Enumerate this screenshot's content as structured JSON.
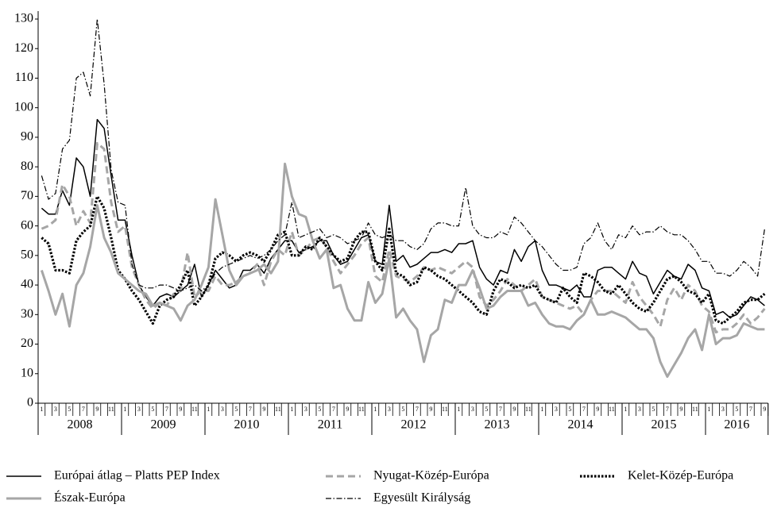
{
  "chart_data": {
    "type": "line",
    "categories": [
      "1",
      null,
      "3",
      null,
      "5",
      null,
      "7",
      null,
      "9",
      null,
      "11",
      null,
      "1",
      null,
      "3",
      null,
      "5",
      null,
      "7",
      null,
      "9",
      null,
      "11",
      null,
      "1",
      null,
      "3",
      null,
      "5",
      null,
      "7",
      null,
      "9",
      null,
      "11",
      null,
      "1",
      null,
      "3",
      null,
      "5",
      null,
      "7",
      null,
      "9",
      null,
      "11",
      null,
      "1",
      null,
      "3",
      null,
      "5",
      null,
      "7",
      null,
      "9",
      null,
      "11",
      null,
      "1",
      null,
      "3",
      null,
      "5",
      null,
      "7",
      null,
      "9",
      null,
      "11",
      null,
      "1",
      null,
      "3",
      null,
      "5",
      null,
      "7",
      null,
      "9",
      null,
      "11",
      null,
      "1",
      null,
      "3",
      null,
      "5",
      null,
      "7",
      null,
      "9",
      null,
      "11",
      null,
      "1",
      null,
      "3",
      null,
      "5",
      null,
      "7",
      null,
      "9"
    ],
    "years": [
      "2008",
      "2009",
      "2010",
      "2011",
      "2012",
      "2013",
      "2014",
      "2015",
      "2016"
    ],
    "ylim": [
      0,
      130
    ],
    "yticks": [
      0,
      10,
      20,
      30,
      40,
      50,
      60,
      70,
      80,
      90,
      100,
      110,
      120,
      130
    ],
    "series": [
      {
        "name": "Európai átlag – Platts PEP Index",
        "color": "#000000",
        "style": "solid",
        "values": [
          66,
          64,
          64,
          72,
          67,
          83,
          80,
          70,
          96,
          93,
          77,
          62,
          62,
          50,
          40,
          36,
          33,
          36,
          37,
          36,
          38,
          40,
          47,
          36,
          40,
          45,
          42,
          39,
          40,
          45,
          45,
          47,
          44,
          49,
          52,
          55,
          55,
          51,
          52,
          53,
          55,
          55,
          50,
          47,
          48,
          52,
          56,
          57,
          48,
          47,
          67,
          48,
          50,
          46,
          47,
          49,
          51,
          51,
          52,
          51,
          54,
          54,
          55,
          46,
          42,
          40,
          45,
          44,
          52,
          48,
          53,
          55,
          45,
          40,
          40,
          39,
          38,
          40,
          36,
          36,
          45,
          46,
          46,
          44,
          42,
          48,
          44,
          43,
          37,
          41,
          45,
          43,
          42,
          47,
          45,
          39,
          38,
          30,
          31,
          29,
          30,
          33,
          36,
          35,
          33
        ]
      },
      {
        "name": "Nyugat-Közép-Európa",
        "color": "#a6a6a6",
        "style": "dashed",
        "values": [
          59,
          60,
          62,
          74,
          70,
          60,
          65,
          61,
          88,
          86,
          68,
          58,
          60,
          46,
          40,
          35,
          32,
          34,
          33,
          37,
          38,
          51,
          36,
          38,
          38,
          43,
          40,
          40,
          41,
          43,
          44,
          47,
          40,
          48,
          52,
          50,
          58,
          50,
          52,
          55,
          56,
          53,
          48,
          44,
          47,
          50,
          54,
          56,
          43,
          41,
          52,
          43,
          42,
          41,
          43,
          46,
          45,
          46,
          45,
          44,
          46,
          48,
          46,
          36,
          33,
          35,
          38,
          42,
          40,
          38,
          40,
          42,
          36,
          35,
          34,
          33,
          32,
          33,
          30,
          35,
          38,
          38,
          38,
          36,
          34,
          41,
          36,
          33,
          30,
          26,
          35,
          39,
          35,
          40,
          38,
          33,
          31,
          24,
          25,
          25,
          27,
          30,
          27,
          29,
          32
        ]
      },
      {
        "name": "Kelet-Közép-Európa",
        "color": "#000000",
        "style": "dotted",
        "values": [
          56,
          54,
          45,
          45,
          44,
          55,
          58,
          60,
          70,
          66,
          56,
          45,
          42,
          38,
          35,
          31,
          27,
          33,
          35,
          36,
          40,
          45,
          33,
          36,
          40,
          49,
          51,
          50,
          48,
          50,
          51,
          50,
          48,
          52,
          57,
          58,
          50,
          50,
          53,
          52,
          56,
          53,
          50,
          48,
          49,
          55,
          58,
          58,
          48,
          45,
          59,
          44,
          43,
          40,
          41,
          46,
          45,
          43,
          42,
          40,
          38,
          36,
          34,
          31,
          30,
          38,
          42,
          41,
          39,
          40,
          39,
          40,
          36,
          35,
          34,
          39,
          36,
          34,
          44,
          43,
          41,
          38,
          37,
          40,
          37,
          34,
          32,
          31,
          34,
          38,
          42,
          43,
          41,
          38,
          37,
          34,
          37,
          28,
          27,
          29,
          31,
          34,
          35,
          35,
          37
        ]
      },
      {
        "name": "Észak-Európa",
        "color": "#a6a6a6",
        "style": "thick",
        "values": [
          45,
          38,
          30,
          37,
          26,
          40,
          44,
          53,
          67,
          56,
          51,
          44,
          42,
          40,
          38,
          37,
          33,
          34,
          33,
          32,
          28,
          33,
          35,
          40,
          46,
          69,
          57,
          45,
          40,
          43,
          44,
          45,
          47,
          44,
          48,
          81,
          70,
          64,
          63,
          55,
          49,
          52,
          39,
          40,
          32,
          28,
          28,
          41,
          34,
          37,
          49,
          29,
          32,
          28,
          25,
          14,
          23,
          25,
          35,
          34,
          40,
          40,
          45,
          39,
          32,
          33,
          36,
          38,
          38,
          38,
          33,
          34,
          30,
          27,
          26,
          26,
          25,
          28,
          30,
          35,
          30,
          30,
          31,
          30,
          29,
          27,
          25,
          25,
          22,
          14,
          9,
          13,
          17,
          22,
          25,
          18,
          30,
          20,
          22,
          22,
          23,
          27,
          26,
          25,
          25
        ]
      },
      {
        "name": "Egyesült Királyság",
        "color": "#000000",
        "style": "dashdot",
        "values": [
          77,
          69,
          71,
          86,
          89,
          110,
          112,
          104,
          130,
          108,
          79,
          68,
          67,
          47,
          40,
          39,
          39,
          40,
          40,
          39,
          38,
          39,
          40,
          38,
          40,
          44,
          46,
          47,
          48,
          49,
          50,
          49,
          50,
          52,
          55,
          57,
          68,
          56,
          57,
          58,
          59,
          56,
          57,
          56,
          54,
          55,
          56,
          61,
          57,
          56,
          57,
          55,
          55,
          53,
          52,
          54,
          59,
          61,
          61,
          60,
          60,
          73,
          60,
          57,
          56,
          56,
          58,
          57,
          63,
          61,
          58,
          55,
          53,
          50,
          47,
          45,
          45,
          46,
          54,
          56,
          61,
          55,
          52,
          57,
          56,
          60,
          57,
          58,
          58,
          60,
          58,
          57,
          57,
          55,
          52,
          48,
          48,
          44,
          44,
          43,
          45,
          48,
          46,
          43,
          59
        ]
      }
    ]
  }
}
